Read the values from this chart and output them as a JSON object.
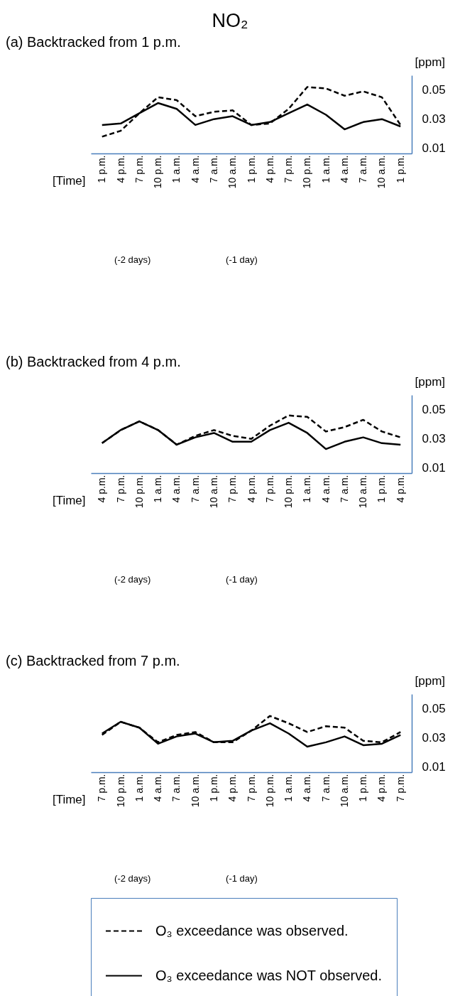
{
  "chart_data": [
    {
      "type": "line",
      "title": "NO₂",
      "subtitle": "(a) Backtracked from 1 p.m.",
      "xlabel": "[Time]",
      "ylabel": "[ppm]",
      "categories": [
        "1 p.m.",
        "4 p.m.",
        "7 p.m.",
        "10 p.m.",
        "1 a.m.",
        "4 a.m.",
        "7 a.m.",
        "10 a.m.",
        "1 p.m.",
        "4 p.m.",
        "7 p.m.",
        "10 p.m.",
        "1 a.m.",
        "4 a.m.",
        "7 a.m.",
        "10 a.m.",
        "1 p.m."
      ],
      "ylim": [
        0.0065,
        0.06
      ],
      "yticks": [
        0.01,
        0.03,
        0.05
      ],
      "series": [
        {
          "color": "#000000",
          "line_style": "dashed",
          "values": [
            0.018,
            0.022,
            0.034,
            0.045,
            0.043,
            0.032,
            0.035,
            0.036,
            0.026,
            0.027,
            0.037,
            0.052,
            0.051,
            0.046,
            0.049,
            0.045,
            0.026
          ]
        },
        {
          "color": "#000000",
          "line_style": "solid",
          "values": [
            0.026,
            0.027,
            0.034,
            0.041,
            0.037,
            0.026,
            0.03,
            0.032,
            0.026,
            0.028,
            0.034,
            0.04,
            0.033,
            0.023,
            0.028,
            0.03,
            0.025
          ]
        }
      ],
      "annotations": [
        "(-2 days)",
        "(-1 day)"
      ]
    },
    {
      "type": "line",
      "subtitle": "(b) Backtracked from 4 p.m.",
      "xlabel": "[Time]",
      "ylabel": "[ppm]",
      "categories": [
        "4 p.m.",
        "7 p.m.",
        "10 p.m.",
        "1 a.m.",
        "4 a.m.",
        "7 a.m.",
        "10 a.m.",
        "7 p.m.",
        "4 p.m.",
        "7 p.m.",
        "10 p.m.",
        "1 a.m.",
        "4 a.m.",
        "7 a.m.",
        "10 a.m.",
        "1 p.m.",
        "4 p.m."
      ],
      "ylim": [
        0.0065,
        0.06
      ],
      "yticks": [
        0.01,
        0.03,
        0.05
      ],
      "series": [
        {
          "color": "#000000",
          "line_style": "dashed",
          "values": [
            0.027,
            0.036,
            0.042,
            0.036,
            0.026,
            0.032,
            0.036,
            0.032,
            0.03,
            0.039,
            0.046,
            0.045,
            0.035,
            0.038,
            0.043,
            0.035,
            0.031
          ]
        },
        {
          "color": "#000000",
          "line_style": "solid",
          "values": [
            0.027,
            0.036,
            0.042,
            0.036,
            0.026,
            0.031,
            0.034,
            0.028,
            0.028,
            0.036,
            0.041,
            0.034,
            0.023,
            0.028,
            0.031,
            0.027,
            0.026
          ]
        }
      ],
      "annotations": [
        "(-2 days)",
        "(-1 day)"
      ]
    },
    {
      "type": "line",
      "subtitle": "(c) Backtracked from 7 p.m.",
      "xlabel": "[Time]",
      "ylabel": "[ppm]",
      "categories": [
        "7 p.m.",
        "10 p.m.",
        "1 a.m.",
        "4 a.m.",
        "7 a.m.",
        "10 a.m.",
        "1 p.m.",
        "4 p.m.",
        "7 p.m.",
        "10 p.m.",
        "1 a.m.",
        "4 a.m.",
        "7 a.m.",
        "10 a.m.",
        "1 p.m.",
        "4 p.m.",
        "7 p.m."
      ],
      "ylim": [
        0.0065,
        0.06
      ],
      "yticks": [
        0.01,
        0.03,
        0.05
      ],
      "series": [
        {
          "name": "O₃ exceedance was observed.",
          "color": "#000000",
          "line_style": "dashed",
          "values": [
            0.032,
            0.041,
            0.037,
            0.027,
            0.032,
            0.034,
            0.027,
            0.027,
            0.035,
            0.045,
            0.04,
            0.034,
            0.038,
            0.037,
            0.028,
            0.027,
            0.034
          ]
        },
        {
          "name": "O₃ exceedance was NOT observed.",
          "color": "#000000",
          "line_style": "solid",
          "values": [
            0.033,
            0.041,
            0.037,
            0.026,
            0.031,
            0.033,
            0.027,
            0.028,
            0.035,
            0.04,
            0.033,
            0.024,
            0.027,
            0.031,
            0.025,
            0.026,
            0.032
          ]
        }
      ],
      "annotations": [
        "(-2 days)",
        "(-1 day)"
      ],
      "legend": "bottom"
    }
  ]
}
